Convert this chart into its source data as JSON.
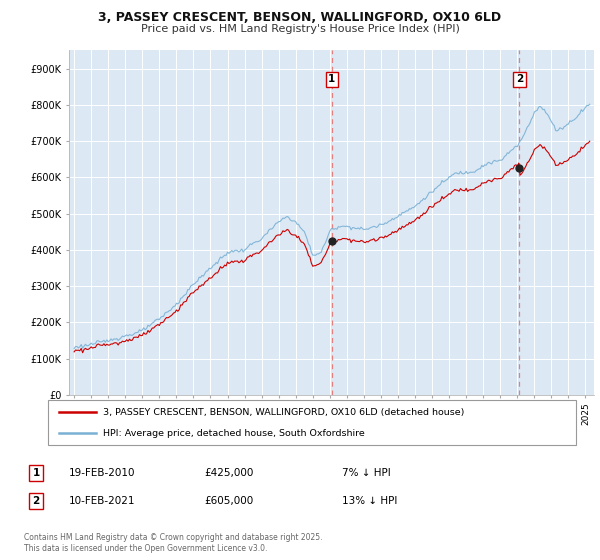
{
  "title": "3, PASSEY CRESCENT, BENSON, WALLINGFORD, OX10 6LD",
  "subtitle": "Price paid vs. HM Land Registry's House Price Index (HPI)",
  "ylim": [
    0,
    950000
  ],
  "yticks": [
    0,
    100000,
    200000,
    300000,
    400000,
    500000,
    600000,
    700000,
    800000,
    900000
  ],
  "ytick_labels": [
    "£0",
    "£100K",
    "£200K",
    "£300K",
    "£400K",
    "£500K",
    "£600K",
    "£700K",
    "£800K",
    "£900K"
  ],
  "legend_entries": [
    "3, PASSEY CRESCENT, BENSON, WALLINGFORD, OX10 6LD (detached house)",
    "HPI: Average price, detached house, South Oxfordshire"
  ],
  "legend_colors": [
    "#cc0000",
    "#7ab0d4"
  ],
  "sale1_date": "19-FEB-2010",
  "sale1_price": "£425,000",
  "sale1_note": "7% ↓ HPI",
  "sale1_x": 2010.12,
  "sale2_date": "10-FEB-2021",
  "sale2_price": "£605,000",
  "sale2_note": "13% ↓ HPI",
  "sale2_x": 2021.12,
  "footer": "Contains HM Land Registry data © Crown copyright and database right 2025.\nThis data is licensed under the Open Government Licence v3.0.",
  "grid_color": "#dddddd",
  "plot_bg_color": "#dce9f5",
  "hpi_color": "#7ab0d4",
  "price_color": "#cc0000",
  "vline_color": "#e08080",
  "xlim_left": 1994.7,
  "xlim_right": 2025.5
}
